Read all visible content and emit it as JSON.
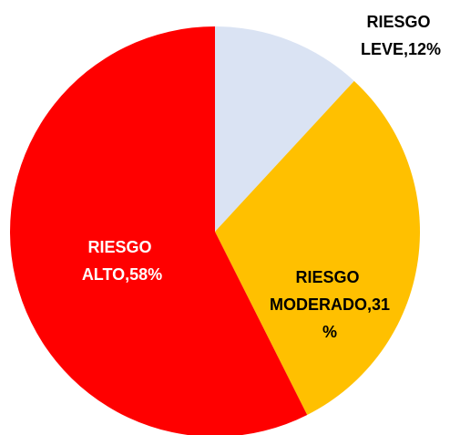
{
  "chart_data": {
    "type": "pie",
    "values": [
      12,
      31,
      58
    ],
    "value_labels": [
      "RIESGO LEVE,12%",
      "RIESGO MODERADO,31%",
      "RIESGO ALTO,58%"
    ],
    "colors": [
      "#dae3f3",
      "#ffc000",
      "#ff0000"
    ]
  }
}
